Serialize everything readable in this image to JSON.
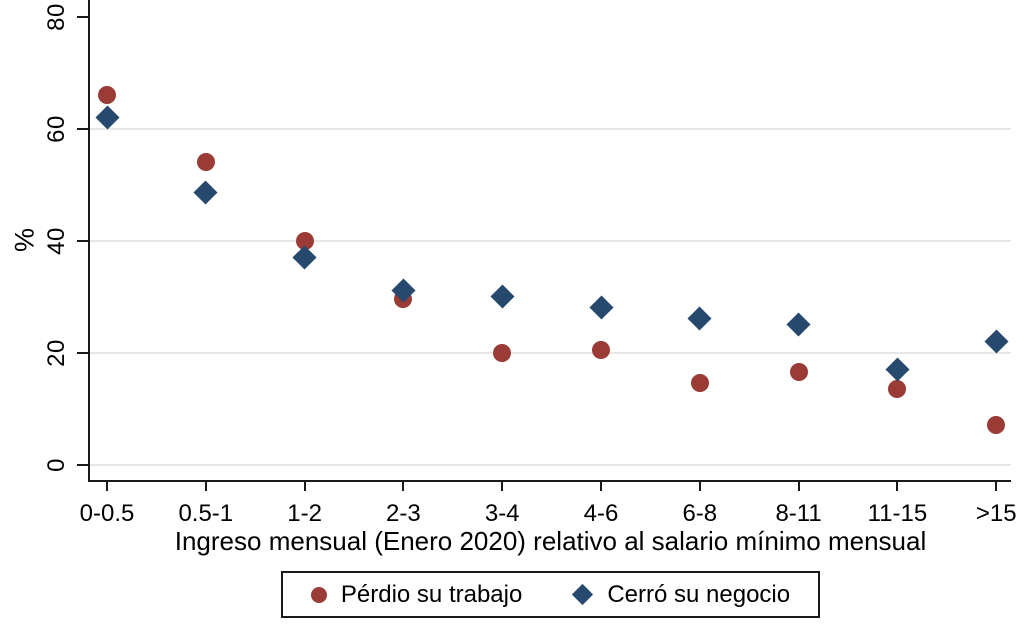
{
  "chart_data": {
    "type": "scatter",
    "title": "",
    "xlabel": "Ingreso mensual (Enero 2020) relativo al salario mínimo mensual",
    "ylabel": "%",
    "categories": [
      "0-0.5",
      "0.5-1",
      "1-2",
      "2-3",
      "3-4",
      "4-6",
      "6-8",
      "8-11",
      "11-15",
      ">15"
    ],
    "series": [
      {
        "name": "Pérdio su trabajo",
        "marker": "circle",
        "color": "#9A3B35",
        "values": [
          66,
          54,
          40,
          29.5,
          20,
          20.5,
          14.5,
          16.5,
          13.5,
          7
        ]
      },
      {
        "name": "Cerró su negocio",
        "marker": "diamond",
        "color": "#27496E",
        "values": [
          62,
          48.5,
          37,
          31,
          30,
          28,
          26,
          25,
          17,
          22
        ]
      }
    ],
    "yticks": [
      0,
      20,
      40,
      60,
      80
    ],
    "grid_values": [
      0,
      20,
      40,
      60
    ],
    "ylim": [
      0,
      82
    ],
    "grid": true,
    "legend_position": "bottom-center-boxed"
  },
  "colors": {
    "axis": "#1a1a1a",
    "grid": "#e7e7e7",
    "background": "#ffffff",
    "text": "#000000",
    "series_perdio": "#9A3B35",
    "series_cerro": "#27496E"
  }
}
